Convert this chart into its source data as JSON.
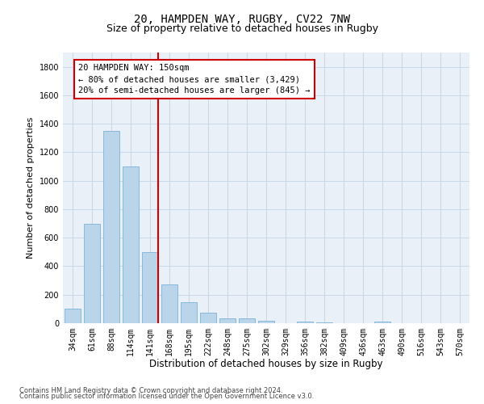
{
  "title1": "20, HAMPDEN WAY, RUGBY, CV22 7NW",
  "title2": "Size of property relative to detached houses in Rugby",
  "xlabel": "Distribution of detached houses by size in Rugby",
  "ylabel": "Number of detached properties",
  "categories": [
    "34sqm",
    "61sqm",
    "88sqm",
    "114sqm",
    "141sqm",
    "168sqm",
    "195sqm",
    "222sqm",
    "248sqm",
    "275sqm",
    "302sqm",
    "329sqm",
    "356sqm",
    "382sqm",
    "409sqm",
    "436sqm",
    "463sqm",
    "490sqm",
    "516sqm",
    "543sqm",
    "570sqm"
  ],
  "values": [
    100,
    700,
    1350,
    1100,
    500,
    275,
    145,
    75,
    35,
    35,
    15,
    0,
    10,
    5,
    0,
    0,
    10,
    0,
    0,
    0,
    0
  ],
  "bar_color": "#bad4ea",
  "bar_edge_color": "#6aaad4",
  "highlight_line_color": "#cc0000",
  "annotation_text": "20 HAMPDEN WAY: 150sqm\n← 80% of detached houses are smaller (3,429)\n20% of semi-detached houses are larger (845) →",
  "annotation_box_color": "#cc0000",
  "footer1": "Contains HM Land Registry data © Crown copyright and database right 2024.",
  "footer2": "Contains public sector information licensed under the Open Government Licence v3.0.",
  "ylim": [
    0,
    1900
  ],
  "yticks": [
    0,
    200,
    400,
    600,
    800,
    1000,
    1200,
    1400,
    1600,
    1800
  ],
  "bg_color": "#ffffff",
  "grid_color": "#c8d8e8",
  "ax_bg_color": "#eaf0f8",
  "title1_fontsize": 10,
  "title2_fontsize": 9,
  "tick_fontsize": 7,
  "ylabel_fontsize": 8,
  "xlabel_fontsize": 8.5,
  "annotation_fontsize": 7.5,
  "footer_fontsize": 6
}
